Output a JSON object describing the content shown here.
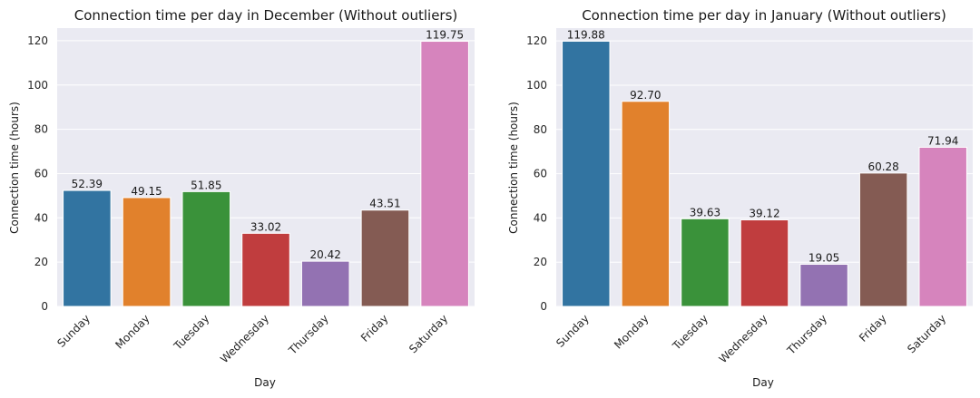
{
  "chart_data": [
    {
      "type": "bar",
      "title": "Connection time per day in December (Without outliers)",
      "xlabel": "Day",
      "ylabel": "Connection time (hours)",
      "categories": [
        "Sunday",
        "Monday",
        "Tuesday",
        "Wednesday",
        "Thursday",
        "Friday",
        "Saturday"
      ],
      "values": [
        52.39,
        49.15,
        51.85,
        33.02,
        20.42,
        43.51,
        119.75
      ],
      "value_labels": [
        "52.39",
        "49.15",
        "51.85",
        "33.02",
        "20.42",
        "43.51",
        "119.75"
      ],
      "colors": [
        "#3274a1",
        "#e1812c",
        "#3a923a",
        "#c03d3e",
        "#9372b2",
        "#845b53",
        "#d684bd"
      ],
      "ylim": [
        0,
        125.7
      ],
      "yticks": [
        0,
        20,
        40,
        60,
        80,
        100,
        120
      ],
      "grid": true,
      "background": "#eaeaf2"
    },
    {
      "type": "bar",
      "title": "Connection time per day in January (Without outliers)",
      "xlabel": "Day",
      "ylabel": "Connection time (hours)",
      "categories": [
        "Sunday",
        "Monday",
        "Tuesday",
        "Wednesday",
        "Thursday",
        "Friday",
        "Saturday"
      ],
      "values": [
        119.88,
        92.7,
        39.63,
        39.12,
        19.05,
        60.28,
        71.94
      ],
      "value_labels": [
        "119.88",
        "92.70",
        "39.63",
        "39.12",
        "19.05",
        "60.28",
        "71.94"
      ],
      "colors": [
        "#3274a1",
        "#e1812c",
        "#3a923a",
        "#c03d3e",
        "#9372b2",
        "#845b53",
        "#d684bd"
      ],
      "ylim": [
        0,
        125.8
      ],
      "yticks": [
        0,
        20,
        40,
        60,
        80,
        100,
        120
      ],
      "grid": true,
      "background": "#eaeaf2"
    }
  ]
}
